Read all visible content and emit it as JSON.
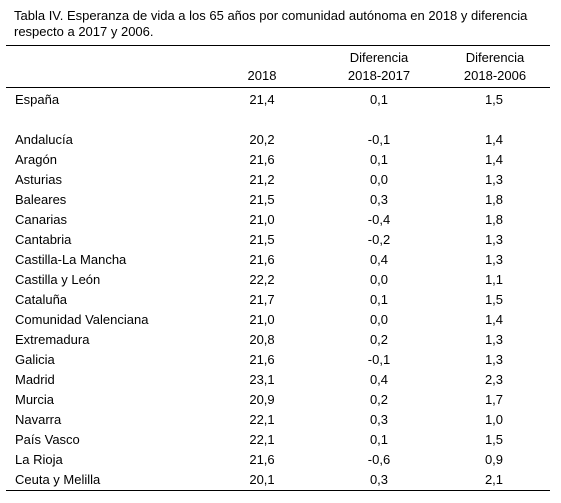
{
  "caption": "Tabla IV. Esperanza de vida a los 65 años por comunidad autónoma en 2018 y diferencia respecto a 2017 y 2006.",
  "columns": {
    "c2018": "2018",
    "d17_line1": "Diferencia",
    "d17_line2": "2018-2017",
    "d06_line1": "Diferencia",
    "d06_line2": "2018-2006"
  },
  "total": {
    "name": "España",
    "v2018": "21,4",
    "d17": "0,1",
    "d06": "1,5"
  },
  "rows": [
    {
      "name": "Andalucía",
      "v2018": "20,2",
      "d17": "-0,1",
      "d06": "1,4"
    },
    {
      "name": "Aragón",
      "v2018": "21,6",
      "d17": "0,1",
      "d06": "1,4"
    },
    {
      "name": "Asturias",
      "v2018": "21,2",
      "d17": "0,0",
      "d06": "1,3"
    },
    {
      "name": "Baleares",
      "v2018": "21,5",
      "d17": "0,3",
      "d06": "1,8"
    },
    {
      "name": "Canarias",
      "v2018": "21,0",
      "d17": "-0,4",
      "d06": "1,8"
    },
    {
      "name": "Cantabria",
      "v2018": "21,5",
      "d17": "-0,2",
      "d06": "1,3"
    },
    {
      "name": "Castilla-La Mancha",
      "v2018": "21,6",
      "d17": "0,4",
      "d06": "1,3"
    },
    {
      "name": "Castilla y León",
      "v2018": "22,2",
      "d17": "0,0",
      "d06": "1,1"
    },
    {
      "name": "Cataluña",
      "v2018": "21,7",
      "d17": "0,1",
      "d06": "1,5"
    },
    {
      "name": "Comunidad Valenciana",
      "v2018": "21,0",
      "d17": "0,0",
      "d06": "1,4"
    },
    {
      "name": "Extremadura",
      "v2018": "20,8",
      "d17": "0,2",
      "d06": "1,3"
    },
    {
      "name": "Galicia",
      "v2018": "21,6",
      "d17": "-0,1",
      "d06": "1,3"
    },
    {
      "name": "Madrid",
      "v2018": "23,1",
      "d17": "0,4",
      "d06": "2,3"
    },
    {
      "name": "Murcia",
      "v2018": "20,9",
      "d17": "0,2",
      "d06": "1,7"
    },
    {
      "name": "Navarra",
      "v2018": "22,1",
      "d17": "0,3",
      "d06": "1,0"
    },
    {
      "name": "País Vasco",
      "v2018": "22,1",
      "d17": "0,1",
      "d06": "1,5"
    },
    {
      "name": "La Rioja",
      "v2018": "21,6",
      "d17": "-0,6",
      "d06": "0,9"
    },
    {
      "name": "Ceuta y Melilla",
      "v2018": "20,1",
      "d17": "0,3",
      "d06": "2,1"
    }
  ]
}
